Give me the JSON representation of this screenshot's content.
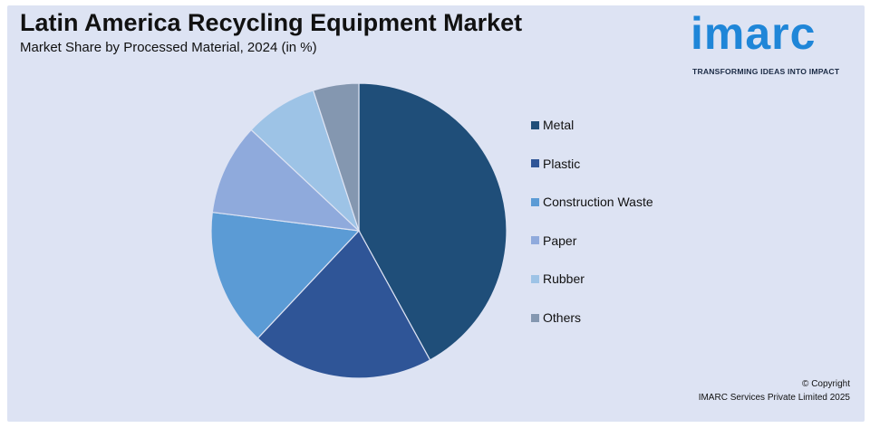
{
  "header": {
    "title": "Latin America Recycling Equipment Market",
    "subtitle": "Market Share by Processed Material, 2024 (in %)"
  },
  "brand": {
    "logo_text": "imarc",
    "tagline": "TRANSFORMING IDEAS INTO IMPACT",
    "color": "#1f86d8"
  },
  "footer": {
    "copyright_line1": "© Copyright",
    "copyright_line2": "IMARC Services Private Limited 2025"
  },
  "chart_data": {
    "type": "pie",
    "legend_position": "right",
    "categories": [
      "Metal",
      "Plastic",
      "Construction Waste",
      "Paper",
      "Rubber",
      "Others"
    ],
    "values": [
      42,
      20,
      15,
      10,
      8,
      5
    ],
    "colors": [
      "#1f4e79",
      "#2f5597",
      "#5b9bd5",
      "#8faadc",
      "#9dc3e6",
      "#8497b0"
    ]
  }
}
